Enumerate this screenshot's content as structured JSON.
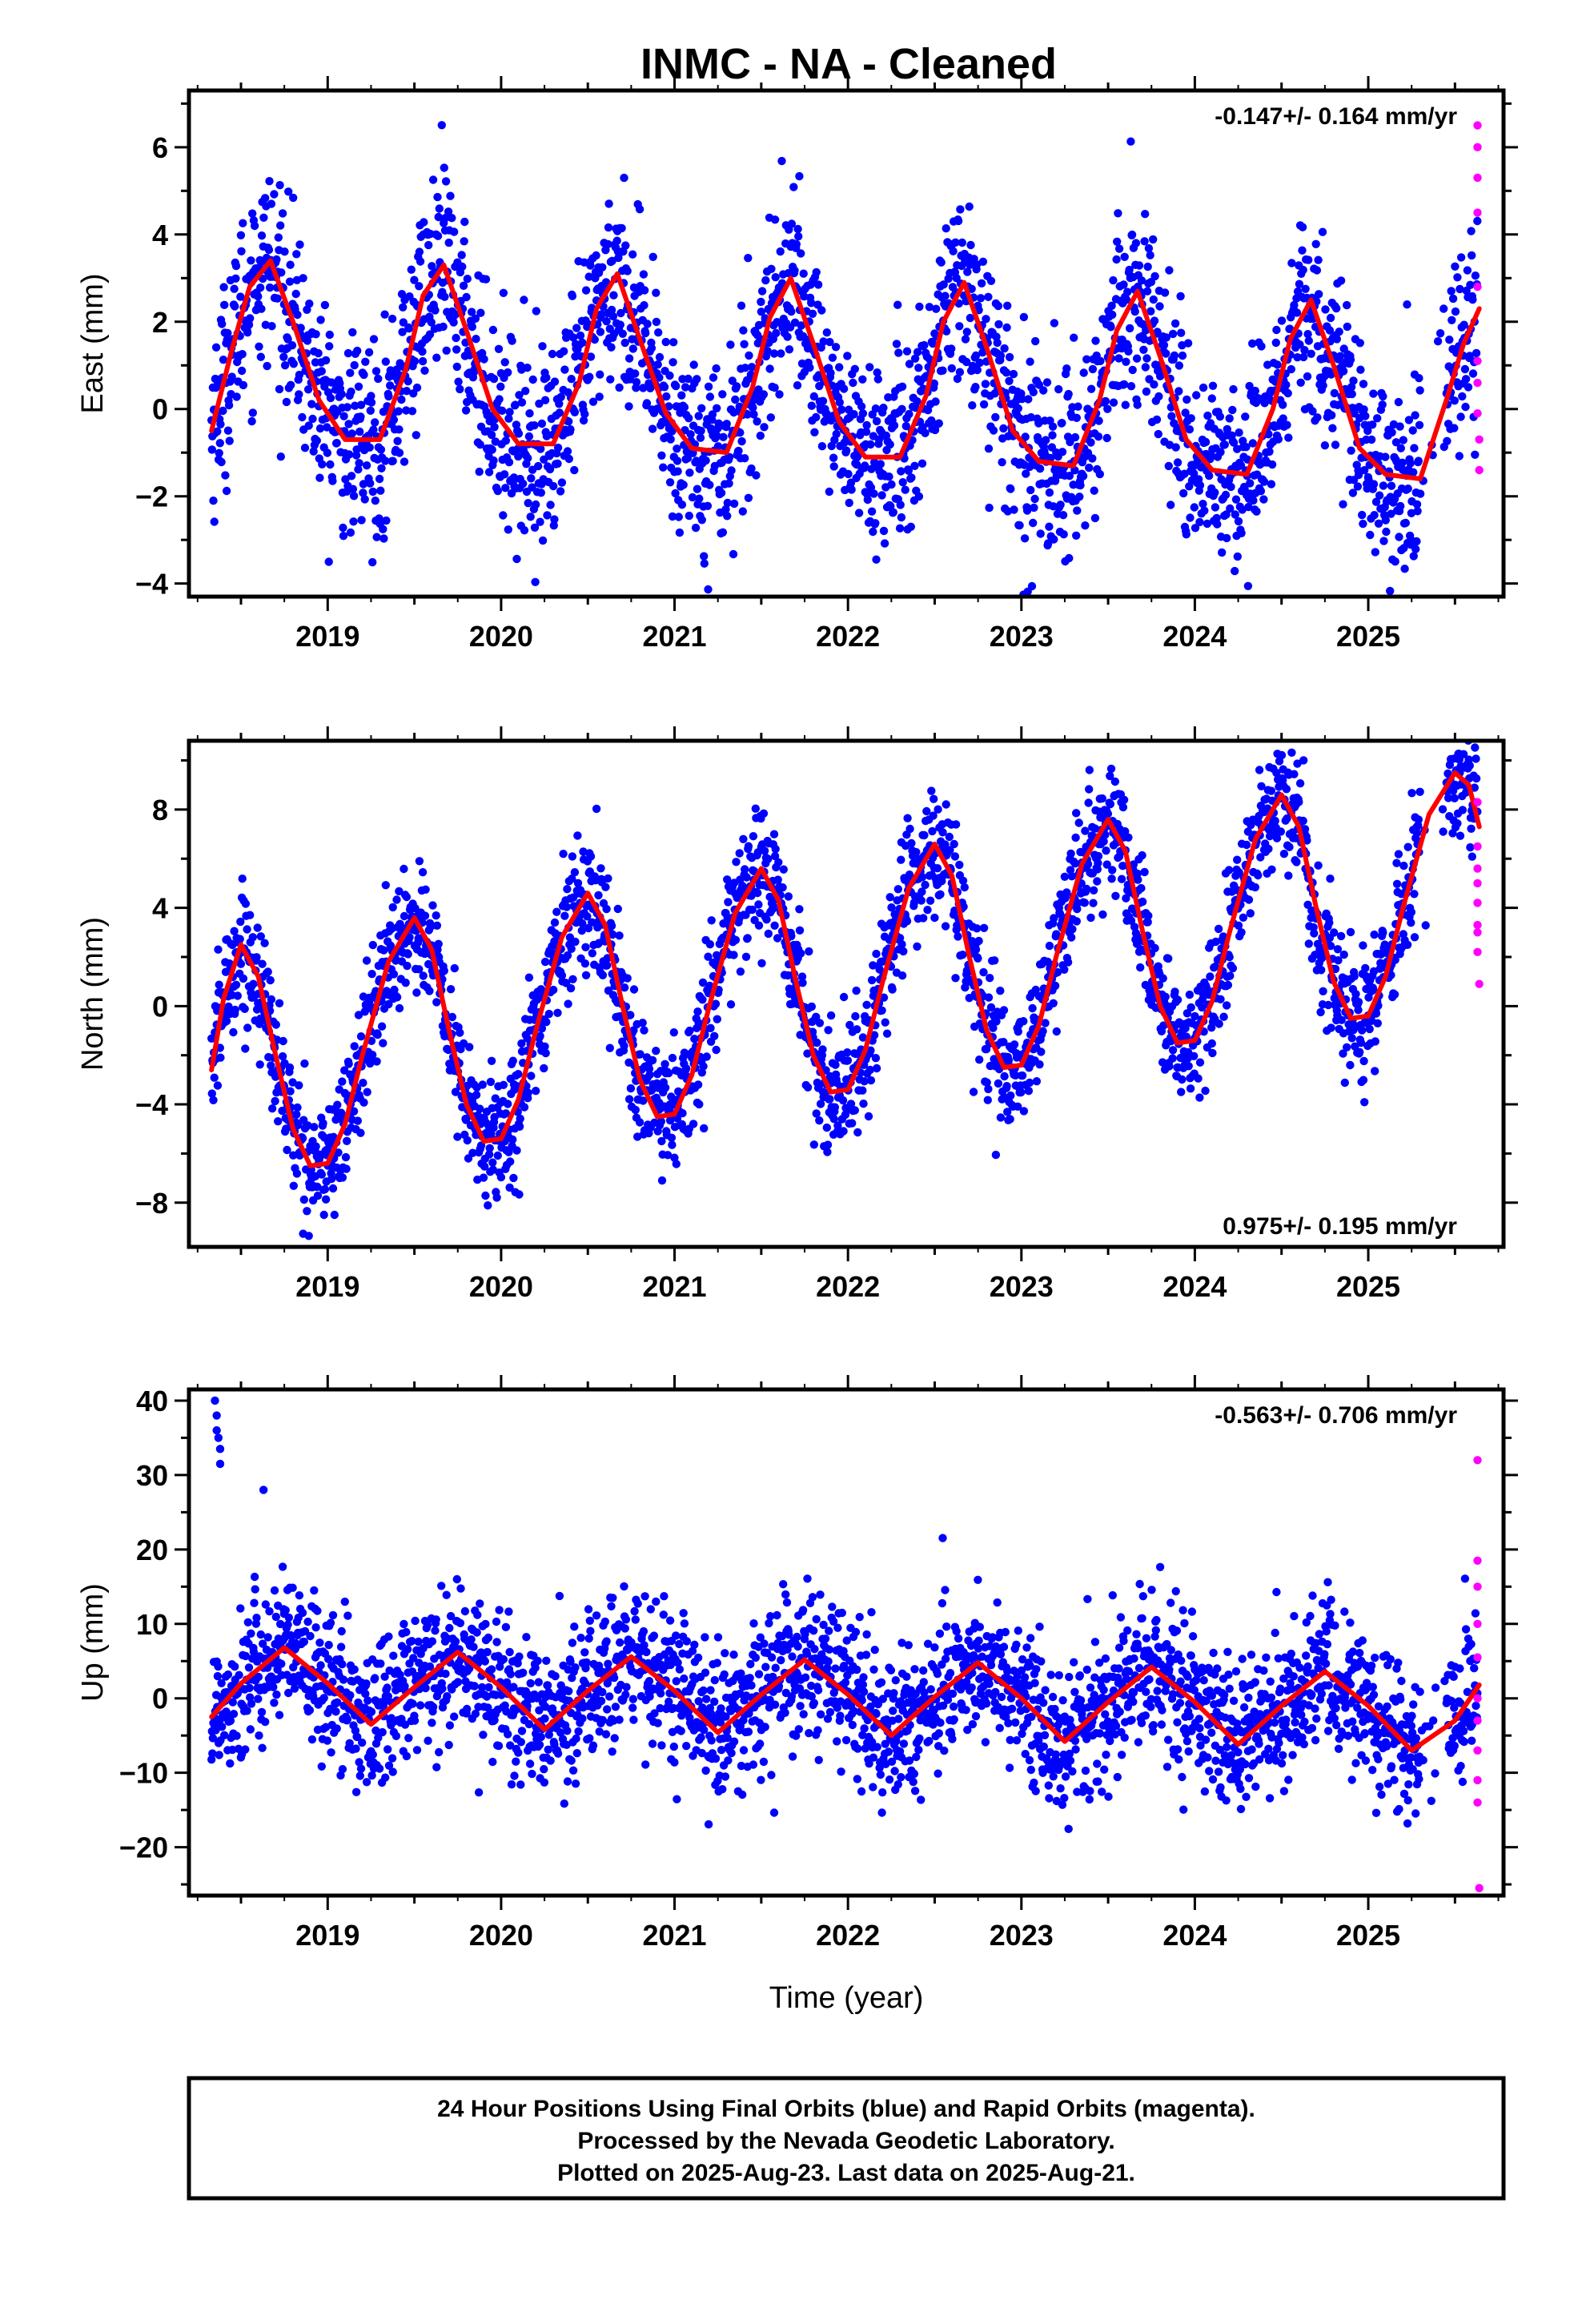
{
  "title": "INMC  - NA - Cleaned",
  "colors": {
    "final": "#0000ff",
    "rapid": "#ff00ff",
    "model": "#ff0000",
    "frame": "#000000"
  },
  "footer": {
    "line1": "24 Hour Positions Using Final Orbits (blue) and Rapid Orbits (magenta).",
    "line2": "Processed by the Nevada Geodetic Laboratory.",
    "line3": "Plotted on 2025-Aug-23. Last data on 2025-Aug-21."
  },
  "chart_data": [
    {
      "type": "scatter",
      "ylabel": "East (mm)",
      "xlabel": "",
      "rate_label": "-0.147+/- 0.164 mm/yr",
      "rate_position": "top-right",
      "xlim": [
        2018.2,
        2025.78
      ],
      "ylim": [
        -4.3,
        7.3
      ],
      "xticks": [
        2019,
        2020,
        2021,
        2022,
        2023,
        2024,
        2025
      ],
      "yticks": [
        -4,
        -2,
        0,
        2,
        4,
        6
      ],
      "ytick_labels": [
        "−4",
        "−2",
        "0",
        "2",
        "4",
        "6"
      ],
      "model_curve": {
        "x": [
          2018.33,
          2018.45,
          2018.55,
          2018.67,
          2018.8,
          2018.95,
          2019.1,
          2019.3,
          2019.45,
          2019.55,
          2019.67,
          2019.8,
          2019.95,
          2020.1,
          2020.3,
          2020.45,
          2020.55,
          2020.67,
          2020.8,
          2020.95,
          2021.1,
          2021.3,
          2021.45,
          2021.55,
          2021.67,
          2021.8,
          2021.95,
          2022.1,
          2022.3,
          2022.45,
          2022.55,
          2022.67,
          2022.8,
          2022.95,
          2023.1,
          2023.3,
          2023.45,
          2023.55,
          2023.67,
          2023.8,
          2023.95,
          2024.1,
          2024.3,
          2024.45,
          2024.55,
          2024.67,
          2024.8,
          2024.95,
          2025.1,
          2025.3,
          2025.45,
          2025.55,
          2025.64
        ],
        "y": [
          -0.5,
          1.4,
          2.8,
          3.4,
          2.0,
          0.2,
          -0.7,
          -0.7,
          0.9,
          2.6,
          3.3,
          1.8,
          0.0,
          -0.8,
          -0.8,
          0.6,
          2.3,
          3.1,
          1.6,
          -0.1,
          -0.9,
          -1.0,
          0.5,
          2.1,
          3.0,
          1.5,
          -0.3,
          -1.1,
          -1.1,
          0.3,
          2.0,
          2.9,
          1.4,
          -0.5,
          -1.2,
          -1.3,
          0.2,
          1.8,
          2.7,
          1.2,
          -0.7,
          -1.4,
          -1.5,
          0.0,
          1.6,
          2.5,
          1.0,
          -0.9,
          -1.5,
          -1.6,
          0.2,
          1.5,
          2.3
        ]
      },
      "scatter_scale": 1.1,
      "rapid_points": {
        "x": [
          2025.63,
          2025.63,
          2025.63,
          2025.63,
          2025.63,
          2025.63,
          2025.63,
          2025.63,
          2025.64,
          2025.64
        ],
        "y": [
          6.5,
          6.0,
          5.3,
          4.5,
          2.8,
          1.1,
          0.6,
          -0.1,
          -0.7,
          -1.4
        ]
      }
    },
    {
      "type": "scatter",
      "ylabel": "North (mm)",
      "xlabel": "",
      "rate_label": "0.975+/- 0.195 mm/yr",
      "rate_position": "bottom-right",
      "xlim": [
        2018.2,
        2025.78
      ],
      "ylim": [
        -9.8,
        10.8
      ],
      "xticks": [
        2019,
        2020,
        2021,
        2022,
        2023,
        2024,
        2025
      ],
      "yticks": [
        -8,
        -4,
        0,
        4,
        8
      ],
      "ytick_labels": [
        "−8",
        "−4",
        "0",
        "4",
        "8"
      ],
      "model_curve": {
        "x": [
          2018.33,
          2018.4,
          2018.5,
          2018.6,
          2018.7,
          2018.8,
          2018.9,
          2019.0,
          2019.1,
          2019.2,
          2019.35,
          2019.5,
          2019.6,
          2019.7,
          2019.8,
          2019.9,
          2020.0,
          2020.1,
          2020.2,
          2020.35,
          2020.5,
          2020.6,
          2020.7,
          2020.8,
          2020.9,
          2021.0,
          2021.1,
          2021.2,
          2021.35,
          2021.5,
          2021.6,
          2021.7,
          2021.8,
          2021.9,
          2022.0,
          2022.1,
          2022.2,
          2022.35,
          2022.5,
          2022.6,
          2022.7,
          2022.8,
          2022.9,
          2023.0,
          2023.1,
          2023.2,
          2023.35,
          2023.5,
          2023.6,
          2023.7,
          2023.8,
          2023.9,
          2024.0,
          2024.1,
          2024.2,
          2024.35,
          2024.5,
          2024.6,
          2024.7,
          2024.8,
          2024.9,
          2025.0,
          2025.1,
          2025.2,
          2025.35,
          2025.5,
          2025.58,
          2025.64
        ],
        "y": [
          -2.6,
          0.3,
          2.5,
          1.2,
          -2.0,
          -5.0,
          -6.5,
          -6.4,
          -4.8,
          -2.0,
          1.8,
          3.6,
          2.3,
          -1.0,
          -4.0,
          -5.5,
          -5.4,
          -3.8,
          -1.0,
          2.8,
          4.6,
          3.3,
          0.0,
          -3.0,
          -4.5,
          -4.4,
          -2.8,
          0.0,
          3.8,
          5.6,
          4.3,
          1.0,
          -2.0,
          -3.5,
          -3.4,
          -1.8,
          1.0,
          4.8,
          6.6,
          5.3,
          2.0,
          -1.0,
          -2.5,
          -2.4,
          -0.8,
          2.0,
          5.8,
          7.6,
          6.3,
          3.0,
          0.0,
          -1.5,
          -1.4,
          0.2,
          3.0,
          6.8,
          8.6,
          7.3,
          4.0,
          1.0,
          -0.5,
          -0.4,
          1.2,
          4.0,
          7.8,
          9.5,
          9.0,
          7.3
        ]
      },
      "scatter_scale": 1.3,
      "rapid_points": {
        "x": [
          2025.63,
          2025.63,
          2025.63,
          2025.63,
          2025.63,
          2025.63,
          2025.63,
          2025.63,
          2025.64
        ],
        "y": [
          8.3,
          6.5,
          5.6,
          5.0,
          4.2,
          3.3,
          3.0,
          2.2,
          0.9
        ]
      }
    },
    {
      "type": "scatter",
      "ylabel": "Up (mm)",
      "xlabel": "Time (year)",
      "rate_label": "-0.563+/- 0.706 mm/yr",
      "rate_position": "top-right",
      "xlim": [
        2018.2,
        2025.78
      ],
      "ylim": [
        -26.5,
        41.5
      ],
      "xticks": [
        2019,
        2020,
        2021,
        2022,
        2023,
        2024,
        2025
      ],
      "yticks": [
        -20,
        -10,
        0,
        10,
        20,
        30,
        40
      ],
      "ytick_labels": [
        "−20",
        "−10",
        "0",
        "10",
        "20",
        "30",
        "40"
      ],
      "model_curve": {
        "x": [
          2018.33,
          2018.5,
          2018.75,
          2019.0,
          2019.25,
          2019.5,
          2019.75,
          2020.0,
          2020.25,
          2020.5,
          2020.75,
          2021.0,
          2021.25,
          2021.5,
          2021.75,
          2022.0,
          2022.25,
          2022.5,
          2022.75,
          2023.0,
          2023.25,
          2023.5,
          2023.75,
          2024.0,
          2024.25,
          2024.5,
          2024.75,
          2025.0,
          2025.25,
          2025.5,
          2025.64
        ],
        "y": [
          -2.5,
          2.0,
          6.8,
          2.0,
          -3.5,
          1.5,
          6.2,
          1.5,
          -4.2,
          1.0,
          5.6,
          1.0,
          -4.6,
          0.5,
          5.2,
          0.5,
          -5.0,
          0.2,
          4.8,
          0.0,
          -5.8,
          -0.5,
          4.2,
          -0.5,
          -6.2,
          -1.0,
          3.6,
          -1.0,
          -7.0,
          -3.0,
          1.8
        ]
      },
      "scatter_scale": 5.0,
      "outliers": {
        "x": [
          2018.35,
          2018.36,
          2018.36,
          2018.37,
          2018.38,
          2018.38,
          2018.63
        ],
        "y": [
          40.0,
          38.0,
          36.0,
          35.0,
          33.5,
          31.5,
          28.0
        ]
      },
      "rapid_points": {
        "x": [
          2025.63,
          2025.63,
          2025.63,
          2025.63,
          2025.63,
          2025.63,
          2025.63,
          2025.63,
          2025.63,
          2025.63,
          2025.64
        ],
        "y": [
          32.0,
          18.5,
          15.0,
          10.0,
          5.5,
          0.0,
          -3.0,
          -7.0,
          -11.0,
          -14.0,
          -25.5
        ]
      }
    }
  ]
}
